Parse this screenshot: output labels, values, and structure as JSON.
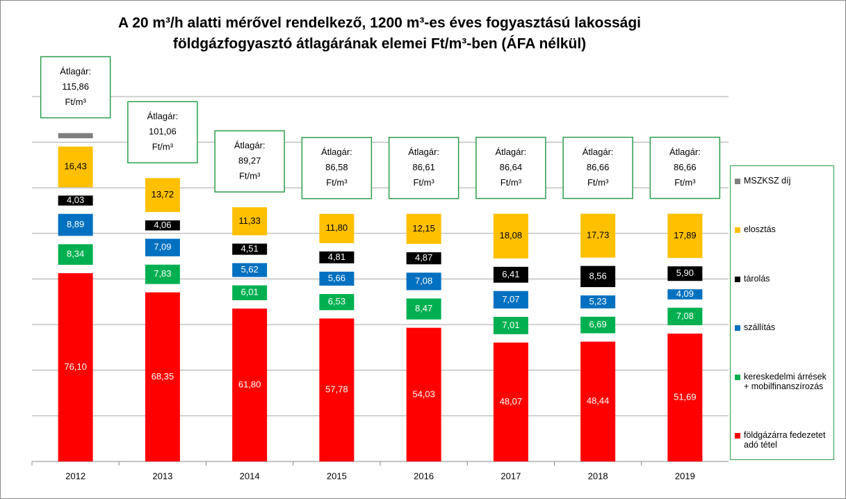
{
  "chart_data": {
    "type": "bar",
    "stacked": true,
    "title": "A 20 m³/h alatti mérővel rendelkező, 1200 m³-es éves fogyasztású lakossági földgázfogyasztó átlagárának elemei Ft/m³-ben (ÁFA nélkül)",
    "categories": [
      "2012",
      "2013",
      "2014",
      "2015",
      "2016",
      "2017",
      "2018",
      "2019"
    ],
    "ylim": [
      0,
      175
    ],
    "series": [
      {
        "name": "földgázárra fedezetet adó tétel",
        "color": "#ff0000",
        "label_color": "#ffffff",
        "values": [
          76.1,
          68.35,
          61.8,
          57.78,
          54.03,
          48.07,
          48.44,
          51.69
        ],
        "value_labels": [
          "76,10",
          "68,35",
          "61,80",
          "57,78",
          "54,03",
          "48,07",
          "48,44",
          "51,69"
        ]
      },
      {
        "name": "kereskedelmi árrések + mobilfinanszírozás",
        "color": "#00b050",
        "label_color": "#ffffff",
        "values": [
          8.34,
          7.83,
          6.01,
          6.53,
          8.47,
          7.01,
          6.69,
          7.08
        ],
        "value_labels": [
          "8,34",
          "7,83",
          "6,01",
          "6,53",
          "8,47",
          "7,01",
          "6,69",
          "7,08"
        ]
      },
      {
        "name": "szállítás",
        "color": "#0070c0",
        "label_color": "#ffffff",
        "values": [
          8.89,
          7.09,
          5.62,
          5.66,
          7.08,
          7.07,
          5.23,
          4.09
        ],
        "value_labels": [
          "8,89",
          "7,09",
          "5,62",
          "5,66",
          "7,08",
          "7,07",
          "5,23",
          "4,09"
        ]
      },
      {
        "name": "tárolás",
        "color": "#000000",
        "label_color": "#ffffff",
        "values": [
          4.03,
          4.06,
          4.51,
          4.81,
          4.87,
          6.41,
          8.56,
          5.9
        ],
        "value_labels": [
          "4,03",
          "4,06",
          "4,51",
          "4,81",
          "4,87",
          "6,41",
          "8,56",
          "5,90"
        ]
      },
      {
        "name": "elosztás",
        "color": "#ffc000",
        "label_color": "#000000",
        "values": [
          16.43,
          13.72,
          11.33,
          11.8,
          12.15,
          18.08,
          17.73,
          17.89
        ],
        "value_labels": [
          "16,43",
          "13,72",
          "11,33",
          "11,80",
          "12,15",
          "18,08",
          "17,73",
          "17,89"
        ]
      },
      {
        "name": "MSZKSZ díj",
        "color": "#7f7f7f",
        "values": [
          2.07,
          null,
          null,
          null,
          null,
          null,
          null,
          null
        ]
      }
    ],
    "average_prefix": "Átlagár:",
    "average_unit": "Ft/m³",
    "averages": [
      115.86,
      101.06,
      89.27,
      86.58,
      86.61,
      86.64,
      86.66,
      86.66
    ],
    "average_labels": [
      "115,86",
      "101,06",
      "89,27",
      "86,58",
      "86,61",
      "86,64",
      "86,66",
      "86,66"
    ]
  }
}
